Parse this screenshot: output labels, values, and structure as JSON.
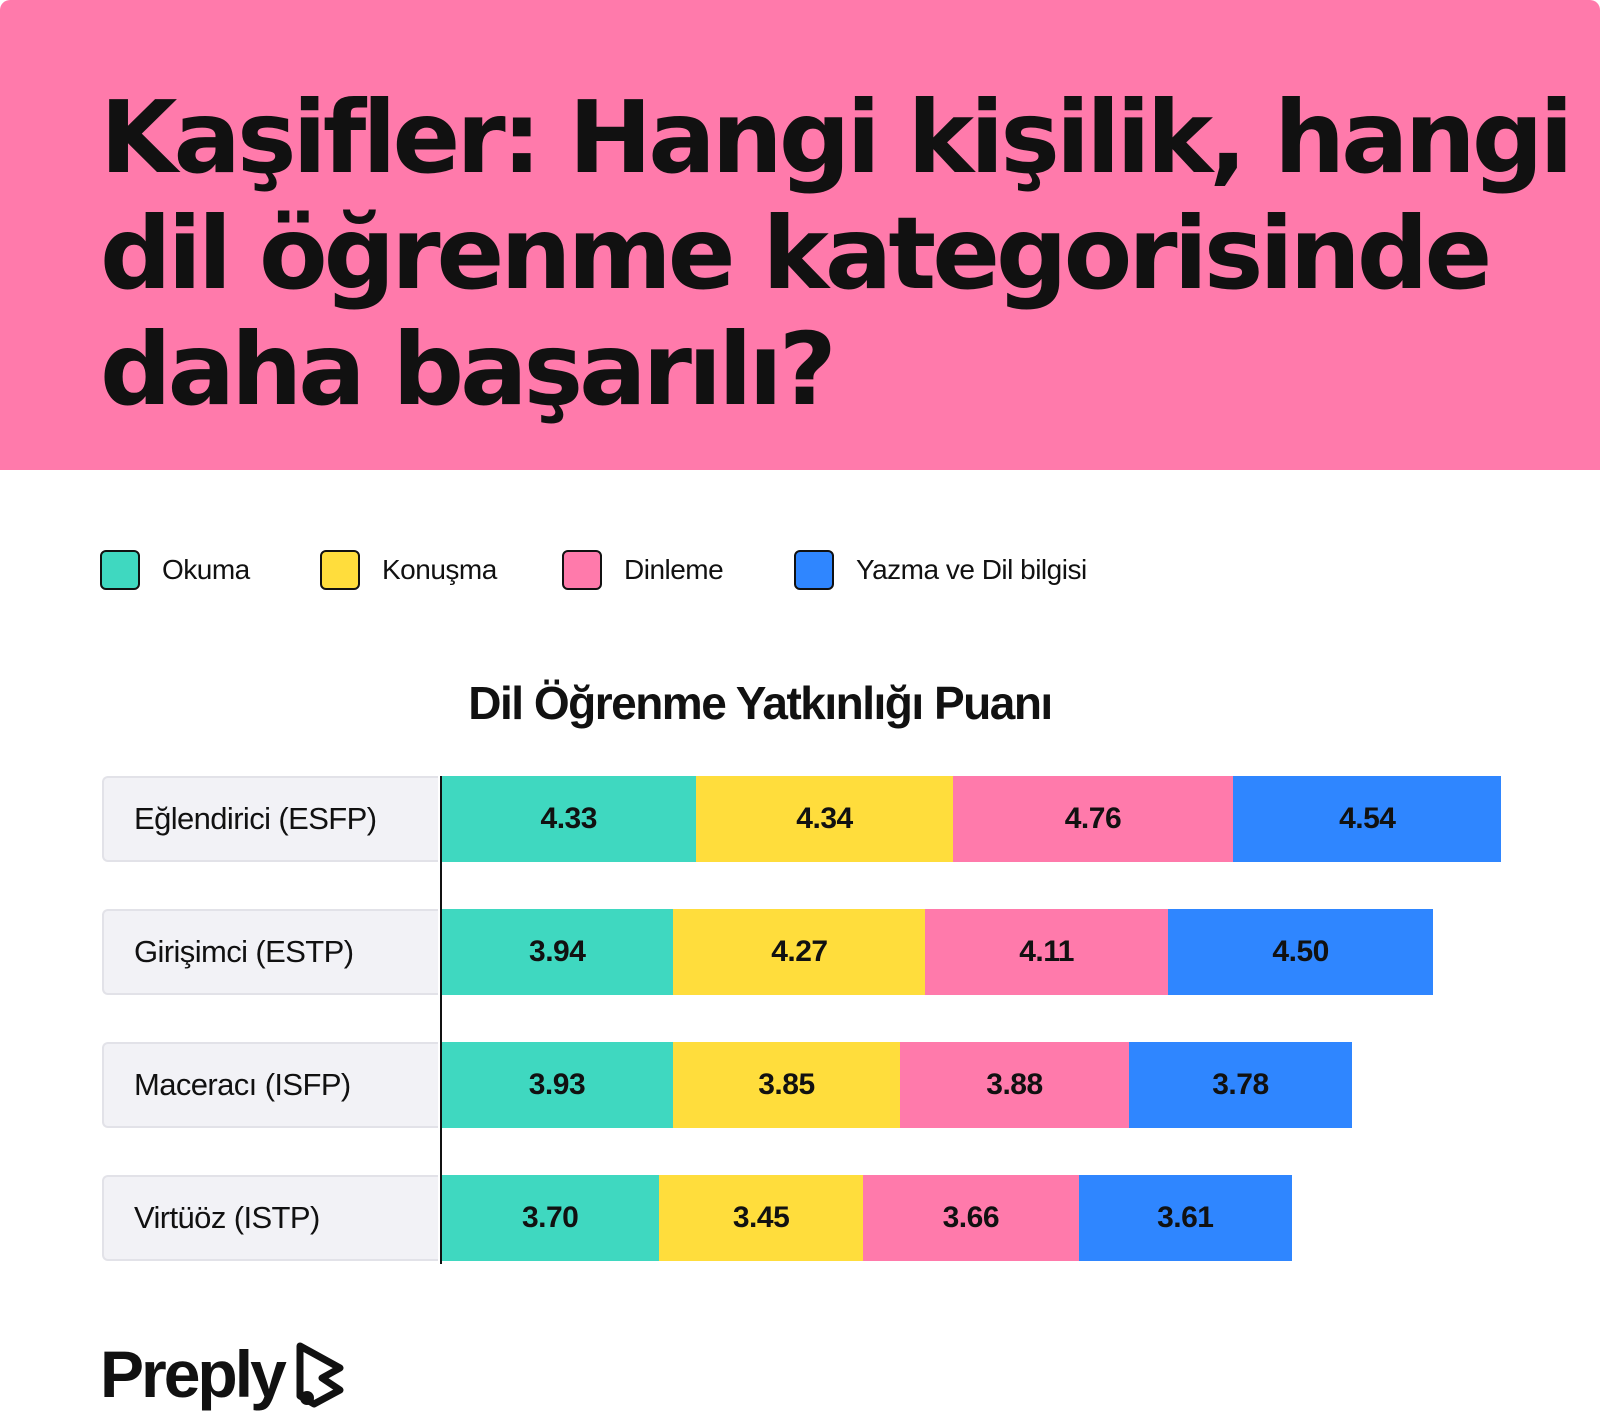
{
  "title_lines": [
    "Kaşifler: Hangi kişilik, hangi",
    "dil öğrenme kategorisinde",
    "daha başarılı?"
  ],
  "colors": {
    "header_bg": "#ff7aab",
    "okuma": "#3fd8c0",
    "konusma": "#ffdd3c",
    "dinleme": "#ff7aab",
    "yazma": "#2f86ff"
  },
  "brand": {
    "name": "Preply"
  },
  "chart_data": {
    "type": "bar",
    "orientation": "horizontal",
    "stacked": true,
    "title": "Dil Öğrenme Yatkınlığı Puanı",
    "legend_position": "top-left",
    "categories": [
      "Eğlendirici (ESFP)",
      "Girişimci (ESTP)",
      "Maceracı (ISFP)",
      "Virtüöz (ISTP)"
    ],
    "series": [
      {
        "name": "Okuma",
        "color": "#3fd8c0",
        "values": [
          4.33,
          3.94,
          3.93,
          3.7
        ]
      },
      {
        "name": "Konuşma",
        "color": "#ffdd3c",
        "values": [
          4.34,
          4.27,
          3.85,
          3.45
        ]
      },
      {
        "name": "Dinleme",
        "color": "#ff7aab",
        "values": [
          4.76,
          4.11,
          3.88,
          3.66
        ]
      },
      {
        "name": "Yazma ve Dil bilgisi",
        "color": "#2f86ff",
        "values": [
          4.54,
          4.5,
          3.78,
          3.61
        ]
      }
    ],
    "value_labels": [
      [
        "4.33",
        "4.34",
        "4.76",
        "4.54"
      ],
      [
        "3.94",
        "4.27",
        "4.11",
        "4.50"
      ],
      [
        "3.93",
        "3.85",
        "3.88",
        "3.78"
      ],
      [
        "3.70",
        "3.45",
        "3.66",
        "3.61"
      ]
    ],
    "grid": false
  }
}
